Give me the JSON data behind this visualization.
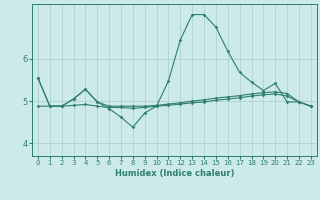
{
  "xlabel": "Humidex (Indice chaleur)",
  "ylabel": "",
  "bg_color": "#cceaea",
  "line_color": "#2e7d72",
  "grid_color": "#aacccc",
  "xlim": [
    -0.5,
    23.5
  ],
  "ylim": [
    3.7,
    7.3
  ],
  "yticks": [
    4,
    5,
    6
  ],
  "xticks": [
    0,
    1,
    2,
    3,
    4,
    5,
    6,
    7,
    8,
    9,
    10,
    11,
    12,
    13,
    14,
    15,
    16,
    17,
    18,
    19,
    20,
    21,
    22,
    23
  ],
  "line1_x": [
    0,
    1,
    2,
    3,
    4,
    5,
    6,
    7,
    8,
    9,
    10,
    11,
    12,
    13,
    14,
    15,
    16,
    17,
    18,
    19,
    20,
    21,
    22,
    23
  ],
  "line1_y": [
    5.55,
    4.88,
    4.88,
    5.05,
    5.28,
    4.98,
    4.88,
    4.88,
    4.88,
    4.88,
    4.9,
    4.93,
    4.96,
    5.0,
    5.03,
    5.07,
    5.1,
    5.13,
    5.17,
    5.2,
    5.22,
    5.18,
    4.98,
    4.88
  ],
  "line2_x": [
    0,
    1,
    2,
    3,
    4,
    5,
    6,
    7,
    8,
    9,
    10,
    11,
    12,
    13,
    14,
    15,
    16,
    17,
    18,
    19,
    20,
    21,
    22,
    23
  ],
  "line2_y": [
    4.88,
    4.88,
    4.88,
    4.9,
    4.92,
    4.88,
    4.85,
    4.85,
    4.83,
    4.85,
    4.88,
    4.9,
    4.93,
    4.96,
    4.98,
    5.02,
    5.05,
    5.08,
    5.12,
    5.15,
    5.17,
    5.12,
    4.98,
    4.88
  ],
  "line3_x": [
    0,
    1,
    2,
    3,
    4,
    5,
    6,
    7,
    8,
    9,
    10,
    11,
    12,
    13,
    14,
    15,
    16,
    17,
    18,
    19,
    20,
    21,
    22,
    23
  ],
  "line3_y": [
    5.55,
    4.88,
    4.88,
    5.05,
    5.28,
    4.98,
    4.82,
    4.62,
    4.38,
    4.72,
    4.88,
    5.48,
    6.45,
    7.05,
    7.05,
    6.75,
    6.18,
    5.68,
    5.45,
    5.25,
    5.42,
    4.98,
    4.98,
    4.88
  ]
}
